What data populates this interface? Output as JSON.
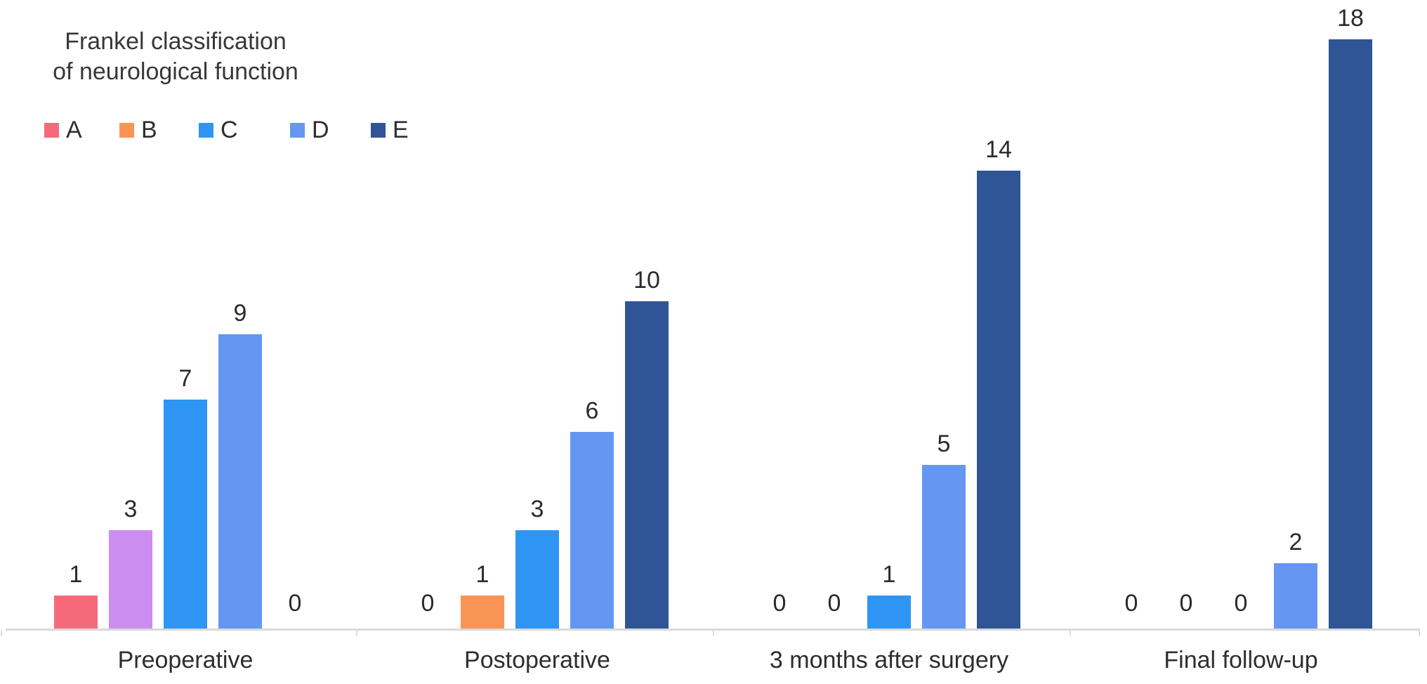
{
  "title": {
    "line1": "Frankel classification",
    "line2": "of neurological function"
  },
  "legend": {
    "items": [
      {
        "label": "A",
        "color": "#f6697a"
      },
      {
        "label": "B",
        "color": "#f99356"
      },
      {
        "label": "C",
        "color": "#2e95f4"
      },
      {
        "label": "D",
        "color": "#6596f2"
      },
      {
        "label": "E",
        "color": "#2f5596"
      }
    ]
  },
  "chart_data": {
    "type": "bar",
    "title": "Frankel classification of neurological function",
    "title_lines": [
      "Frankel classification",
      "of neurological function"
    ],
    "categories": [
      "Preoperative",
      "Postoperative",
      "3 months after surgery",
      "Final follow-up"
    ],
    "series": [
      {
        "name": "A",
        "color": "#f6697a",
        "values": [
          1,
          0,
          0,
          0
        ]
      },
      {
        "name": "B",
        "color": "#f99356",
        "values": [
          3,
          1,
          0,
          0
        ],
        "bar_colors": [
          "#cb8def",
          "#f99356",
          "#f99356",
          "#f99356"
        ]
      },
      {
        "name": "C",
        "color": "#2e95f4",
        "values": [
          7,
          3,
          1,
          0
        ]
      },
      {
        "name": "D",
        "color": "#6596f2",
        "values": [
          9,
          6,
          5,
          2
        ]
      },
      {
        "name": "E",
        "color": "#2f5596",
        "values": [
          0,
          10,
          14,
          18
        ]
      }
    ],
    "ylim": [
      0,
      18
    ],
    "grid": false,
    "legend_position": "top-left",
    "value_labels": true,
    "xlabel": "",
    "ylabel": ""
  },
  "colors": {
    "axis_line": "#d9d9d9",
    "tick": "#dcdcdc",
    "text": "#2e2e2e"
  }
}
